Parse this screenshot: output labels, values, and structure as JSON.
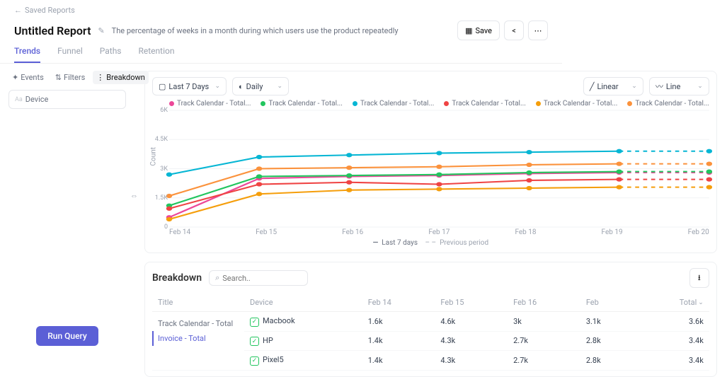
{
  "nav": {
    "back": "Saved Reports"
  },
  "header": {
    "title": "Untitled Report",
    "description": "The percentage of weeks in a month during which users use the product repeatedly",
    "save": "Save"
  },
  "tabs": [
    "Trends",
    "Funnel",
    "Paths",
    "Retention"
  ],
  "toolTabs": {
    "events": "Events",
    "filters": "Filters",
    "breakdown": "Breakdown"
  },
  "breakdownChip": "Device",
  "runQuery": "Run Query",
  "controls": {
    "range": "Last 7 Days",
    "granularity": "Daily",
    "scale": "Linear",
    "chartType": "Line"
  },
  "chart": {
    "type": "line",
    "ylabel": "Count",
    "ylim": [
      0,
      6000
    ],
    "yticks": [
      "6K",
      "4.5K",
      "3K",
      "1.5K",
      "0"
    ],
    "xCategories": [
      "Feb 14",
      "Feb 15",
      "Feb 16",
      "Feb 17",
      "Feb 18",
      "Feb 19",
      "Feb 20"
    ],
    "grid_color": "#f1f3f5",
    "line_width": 2,
    "marker_radius": 3,
    "legendText": "Track Calendar - Total...",
    "legendSolid": "Last 7 days",
    "legendDashed": "Previous period",
    "series": [
      {
        "color": "#ec4899",
        "values": [
          500,
          2500,
          2600,
          2650,
          2750,
          2800,
          2800
        ]
      },
      {
        "color": "#22c55e",
        "values": [
          1100,
          2600,
          2650,
          2700,
          2800,
          2850,
          2850
        ]
      },
      {
        "color": "#06b6d4",
        "values": [
          2700,
          3600,
          3700,
          3800,
          3850,
          3900,
          3900
        ]
      },
      {
        "color": "#ef4444",
        "values": [
          950,
          2200,
          2300,
          2200,
          2400,
          2450,
          2450
        ]
      },
      {
        "color": "#f59e0b",
        "values": [
          400,
          1700,
          1900,
          1950,
          2000,
          2050,
          2050
        ]
      },
      {
        "color": "#fb923c",
        "values": [
          1600,
          3000,
          3050,
          3100,
          3200,
          3250,
          3250
        ]
      }
    ]
  },
  "breakdown": {
    "title": "Breakdown",
    "searchPlaceholder": "Search..",
    "leftTitles": [
      "Track Calendar - Total",
      "Invoice - Total"
    ],
    "columns": [
      "Title",
      "Device",
      "Feb 14",
      "Feb 15",
      "Feb 16",
      "Feb",
      "Total"
    ],
    "rows": [
      {
        "device": "Macbook",
        "c1": "1.6k",
        "c2": "4.6k",
        "c3": "3k",
        "c4": "3.1k",
        "total": "3.6k"
      },
      {
        "device": "HP",
        "c1": "1.4k",
        "c2": "4.3k",
        "c3": "2.7k",
        "c4": "2.8k",
        "total": "3.4k"
      },
      {
        "device": "Pixel5",
        "c1": "1.4k",
        "c2": "4.3k",
        "c3": "2.7k",
        "c4": "2.8k",
        "total": "3.4k"
      }
    ]
  }
}
